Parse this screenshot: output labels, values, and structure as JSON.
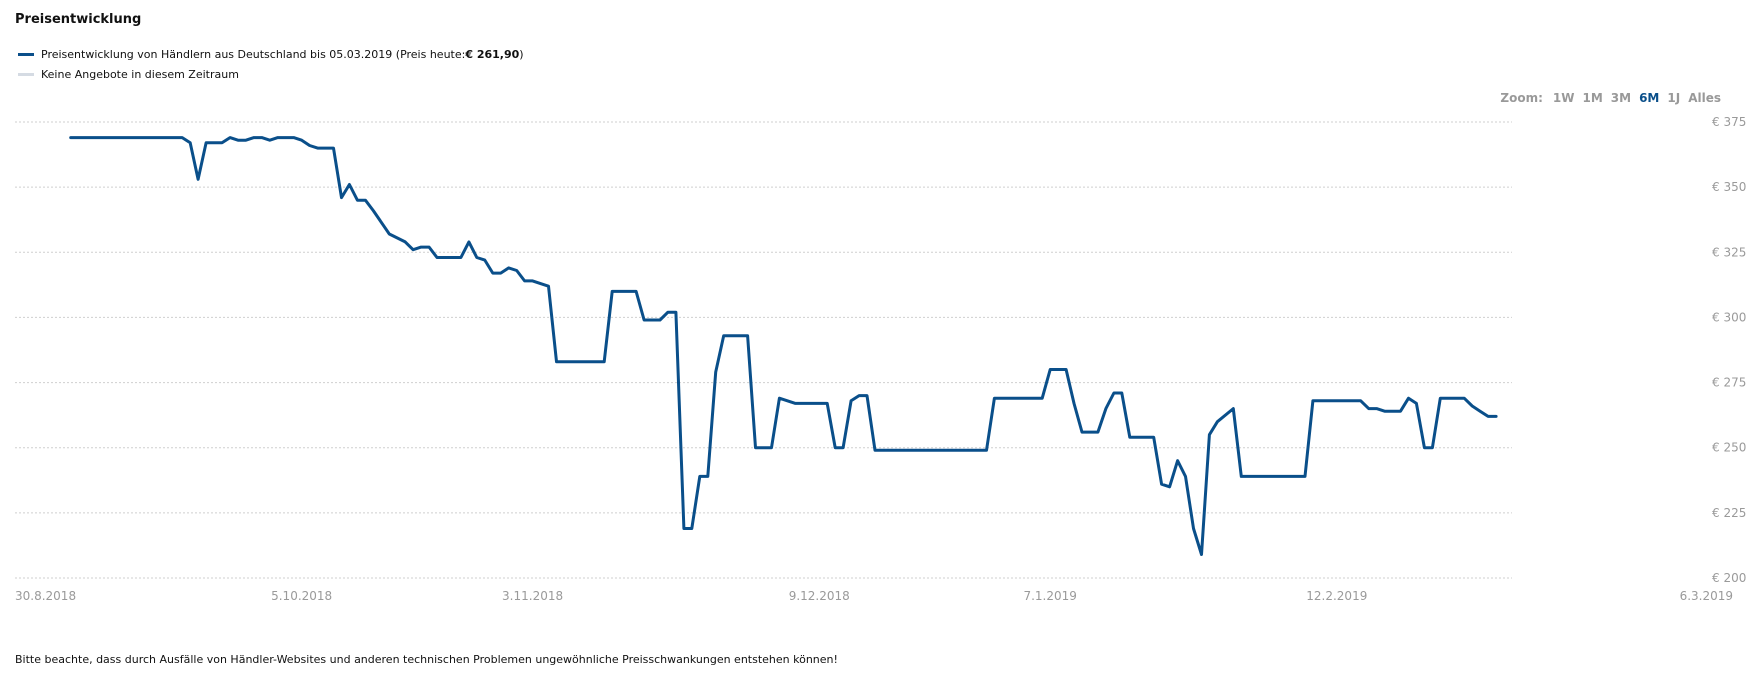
{
  "title": "Preisentwicklung",
  "legend": {
    "series_prefix": "Preisentwicklung von Händlern aus Deutschland bis 05.03.2019 (Preis heute: ",
    "series_price": "€ 261,90",
    "series_suffix": ")",
    "no_offers": "Keine Angebote in diesem Zeitraum",
    "series_color": "#0a4f8a",
    "no_offers_color": "#d5dbe3"
  },
  "zoom": {
    "label": "Zoom:",
    "options": [
      "1W",
      "1M",
      "3M",
      "6M",
      "1J",
      "Alles"
    ],
    "active": "6M"
  },
  "disclaimer": "Bitte beachte, dass durch Ausfälle von Händler-Websites und anderen technischen Problemen ungewöhnliche Preisschwankungen entstehen können!",
  "chart_data": {
    "type": "line",
    "title": "Preisentwicklung",
    "xlabel": "",
    "ylabel": "",
    "xlim": [
      "2018-08-30",
      "2019-03-06"
    ],
    "ylim": [
      200,
      375
    ],
    "y_ticks": [
      {
        "value": 375,
        "label": "€ 375"
      },
      {
        "value": 350,
        "label": "€ 350"
      },
      {
        "value": 325,
        "label": "€ 325"
      },
      {
        "value": 300,
        "label": "€ 300"
      },
      {
        "value": 275,
        "label": "€ 275"
      },
      {
        "value": 250,
        "label": "€ 250"
      },
      {
        "value": 225,
        "label": "€ 225"
      },
      {
        "value": 200,
        "label": "€ 200"
      }
    ],
    "x_ticks": [
      {
        "date": "2018-08-30",
        "label": "30.8.2018"
      },
      {
        "date": "2018-10-05",
        "label": "5.10.2018"
      },
      {
        "date": "2018-11-03",
        "label": "3.11.2018"
      },
      {
        "date": "2018-12-09",
        "label": "9.12.2018"
      },
      {
        "date": "2019-01-07",
        "label": "7.1.2019"
      },
      {
        "date": "2019-02-12",
        "label": "12.2.2019"
      },
      {
        "date": "2019-03-06",
        "label": "6.3.2019"
      }
    ],
    "grid": true,
    "legend_position": "top-left",
    "series": [
      {
        "name": "Preisentwicklung von Händlern aus Deutschland bis 05.03.2019",
        "color": "#0a4f8a",
        "points": [
          [
            "2018-09-06",
            369
          ],
          [
            "2018-09-20",
            369
          ],
          [
            "2018-09-21",
            367
          ],
          [
            "2018-09-22",
            353
          ],
          [
            "2018-09-23",
            367
          ],
          [
            "2018-09-25",
            367
          ],
          [
            "2018-09-26",
            369
          ],
          [
            "2018-09-27",
            368
          ],
          [
            "2018-09-28",
            368
          ],
          [
            "2018-09-29",
            369
          ],
          [
            "2018-09-30",
            369
          ],
          [
            "2018-10-01",
            368
          ],
          [
            "2018-10-02",
            369
          ],
          [
            "2018-10-04",
            369
          ],
          [
            "2018-10-05",
            368
          ],
          [
            "2018-10-06",
            366
          ],
          [
            "2018-10-07",
            365
          ],
          [
            "2018-10-09",
            365
          ],
          [
            "2018-10-10",
            346
          ],
          [
            "2018-10-11",
            351
          ],
          [
            "2018-10-12",
            345
          ],
          [
            "2018-10-13",
            345
          ],
          [
            "2018-10-14",
            341
          ],
          [
            "2018-10-16",
            332
          ],
          [
            "2018-10-18",
            329
          ],
          [
            "2018-10-19",
            326
          ],
          [
            "2018-10-20",
            327
          ],
          [
            "2018-10-21",
            327
          ],
          [
            "2018-10-22",
            323
          ],
          [
            "2018-10-25",
            323
          ],
          [
            "2018-10-26",
            329
          ],
          [
            "2018-10-27",
            323
          ],
          [
            "2018-10-28",
            322
          ],
          [
            "2018-10-29",
            317
          ],
          [
            "2018-10-30",
            317
          ],
          [
            "2018-10-31",
            319
          ],
          [
            "2018-11-01",
            318
          ],
          [
            "2018-11-02",
            314
          ],
          [
            "2018-11-03",
            314
          ],
          [
            "2018-11-04",
            313
          ],
          [
            "2018-11-05",
            312
          ],
          [
            "2018-11-06",
            283
          ],
          [
            "2018-11-12",
            283
          ],
          [
            "2018-11-13",
            310
          ],
          [
            "2018-11-16",
            310
          ],
          [
            "2018-11-17",
            299
          ],
          [
            "2018-11-19",
            299
          ],
          [
            "2018-11-20",
            302
          ],
          [
            "2018-11-21",
            302
          ],
          [
            "2018-11-22",
            219
          ],
          [
            "2018-11-23",
            219
          ],
          [
            "2018-11-24",
            239
          ],
          [
            "2018-11-25",
            239
          ],
          [
            "2018-11-26",
            279
          ],
          [
            "2018-11-27",
            293
          ],
          [
            "2018-11-30",
            293
          ],
          [
            "2018-12-01",
            250
          ],
          [
            "2018-12-03",
            250
          ],
          [
            "2018-12-04",
            269
          ],
          [
            "2018-12-05",
            268
          ],
          [
            "2018-12-06",
            267
          ],
          [
            "2018-12-10",
            267
          ],
          [
            "2018-12-11",
            250
          ],
          [
            "2018-12-12",
            250
          ],
          [
            "2018-12-13",
            268
          ],
          [
            "2018-12-14",
            270
          ],
          [
            "2018-12-15",
            270
          ],
          [
            "2018-12-16",
            249
          ],
          [
            "2018-12-30",
            249
          ],
          [
            "2018-12-31",
            269
          ],
          [
            "2019-01-06",
            269
          ],
          [
            "2019-01-07",
            280
          ],
          [
            "2019-01-09",
            280
          ],
          [
            "2019-01-10",
            267
          ],
          [
            "2019-01-11",
            256
          ],
          [
            "2019-01-13",
            256
          ],
          [
            "2019-01-14",
            265
          ],
          [
            "2019-01-15",
            271
          ],
          [
            "2019-01-16",
            271
          ],
          [
            "2019-01-17",
            254
          ],
          [
            "2019-01-20",
            254
          ],
          [
            "2019-01-21",
            236
          ],
          [
            "2019-01-22",
            235
          ],
          [
            "2019-01-23",
            245
          ],
          [
            "2019-01-24",
            239
          ],
          [
            "2019-01-25",
            219
          ],
          [
            "2019-01-26",
            209
          ],
          [
            "2019-01-27",
            255
          ],
          [
            "2019-01-28",
            260
          ],
          [
            "2019-01-30",
            265
          ],
          [
            "2019-01-31",
            239
          ],
          [
            "2019-02-08",
            239
          ],
          [
            "2019-02-09",
            268
          ],
          [
            "2019-02-15",
            268
          ],
          [
            "2019-02-16",
            265
          ],
          [
            "2019-02-17",
            265
          ],
          [
            "2019-02-18",
            264
          ],
          [
            "2019-02-20",
            264
          ],
          [
            "2019-02-21",
            269
          ],
          [
            "2019-02-22",
            267
          ],
          [
            "2019-02-23",
            250
          ],
          [
            "2019-02-24",
            250
          ],
          [
            "2019-02-25",
            269
          ],
          [
            "2019-02-28",
            269
          ],
          [
            "2019-03-01",
            266
          ],
          [
            "2019-03-02",
            264
          ],
          [
            "2019-03-03",
            262
          ],
          [
            "2019-03-04",
            262
          ]
        ]
      }
    ]
  }
}
